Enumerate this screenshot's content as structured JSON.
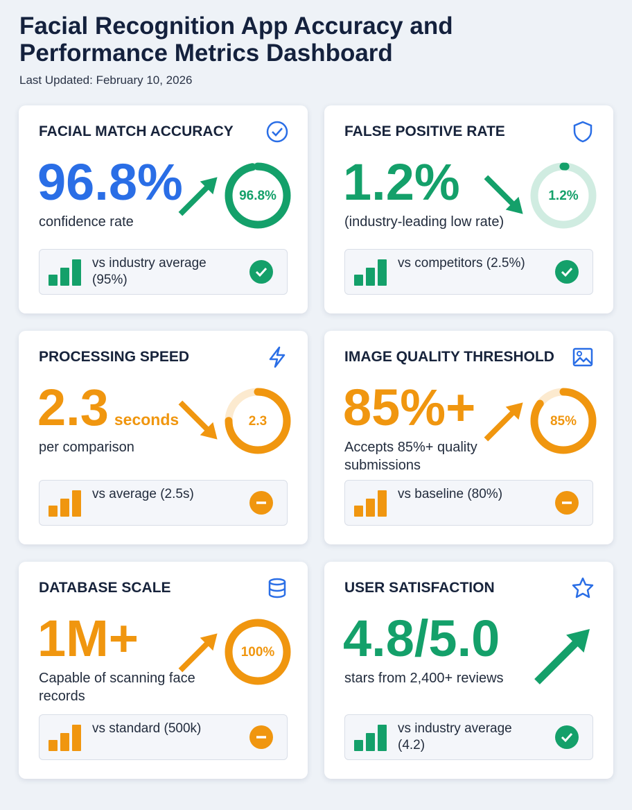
{
  "header": {
    "title": "Facial Recognition App Accuracy and Performance Metrics Dashboard",
    "updated": "Last Updated: February 10, 2026"
  },
  "cards": [
    {
      "title": "FACIAL MATCH ACCURACY",
      "value": "96.8%",
      "description": "confidence rate",
      "trend": "up",
      "gauge": {
        "label": "96.8%",
        "percent": 96.8
      },
      "comparison": "vs industry average (95%)",
      "status": "check",
      "value_color": "#2a6ee6",
      "color": "#14a06a"
    },
    {
      "title": "FALSE POSITIVE RATE",
      "value": "1.2%",
      "description": "(industry-leading low rate)",
      "trend": "down",
      "gauge": {
        "label": "1.2%",
        "percent": 1.2
      },
      "comparison": "vs competitors (2.5%)",
      "status": "check",
      "value_color": "#14a06a",
      "color": "#14a06a"
    },
    {
      "title": "PROCESSING SPEED",
      "value": "2.3",
      "unit": "seconds",
      "description": "per comparison",
      "trend": "down",
      "gauge": {
        "label": "2.3",
        "percent": 75
      },
      "comparison": "vs average (2.5s)",
      "status": "minus",
      "value_color": "#f0960f",
      "color": "#f0960f"
    },
    {
      "title": "IMAGE QUALITY THRESHOLD",
      "value": "85%+",
      "description": "Accepts 85%+ quality submissions",
      "trend": "up",
      "gauge": {
        "label": "85%",
        "percent": 85
      },
      "comparison": "vs baseline (80%)",
      "status": "minus",
      "value_color": "#f0960f",
      "color": "#f0960f"
    },
    {
      "title": "DATABASE SCALE",
      "value": "1M+",
      "description": "Capable of scanning face records",
      "trend": "up",
      "gauge": {
        "label": "100%",
        "percent": 100
      },
      "comparison": "vs standard (500k)",
      "status": "minus",
      "value_color": "#f0960f",
      "color": "#f0960f"
    },
    {
      "title": "USER SATISFACTION",
      "value": "4.8/5.0",
      "description": "stars from 2,400+ reviews",
      "trend": "up",
      "comparison": "vs industry average (4.2)",
      "status": "check",
      "value_color": "#14a06a",
      "color": "#14a06a"
    }
  ]
}
